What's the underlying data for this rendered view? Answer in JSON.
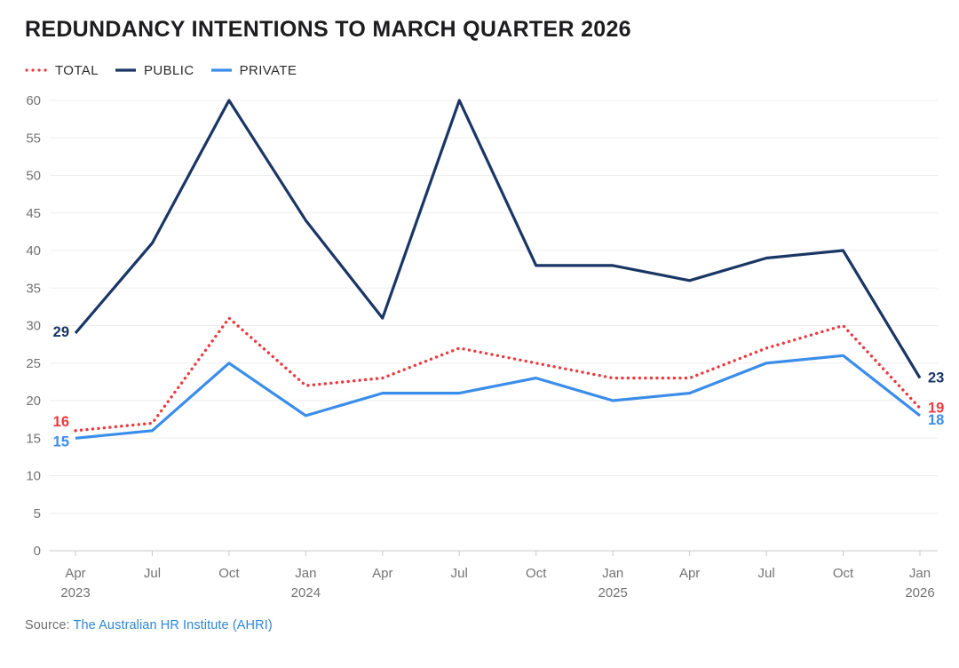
{
  "title": "REDUNDANCY INTENTIONS TO MARCH QUARTER 2026",
  "source": {
    "prefix": "Source:",
    "link_text": "The Australian HR Institute (AHRI)"
  },
  "colors": {
    "total": "#ec3a3f",
    "public": "#1a3665",
    "private": "#3a8dea",
    "axis_text": "#737373",
    "gridline": "#ededed",
    "axis_line": "#c9c9c9",
    "title_text": "#1d1d1f",
    "legend_text": "#2b2b2b",
    "source_text": "#6e6e6e",
    "source_link": "#2e86d6"
  },
  "chart_data": {
    "type": "line",
    "title": "REDUNDANCY INTENTIONS TO MARCH QUARTER 2026",
    "categories": [
      "Apr 2023",
      "Jul 2023",
      "Oct 2023",
      "Jan 2024",
      "Apr 2024",
      "Jul 2024",
      "Oct 2024",
      "Jan 2025",
      "Apr 2025",
      "Jul 2025",
      "Oct 2025",
      "Jan 2026"
    ],
    "x_tick_months": [
      "Apr",
      "Jul",
      "Oct",
      "Jan",
      "Apr",
      "Jul",
      "Oct",
      "Jan",
      "Apr",
      "Jul",
      "Oct",
      "Jan"
    ],
    "x_year_labels": [
      {
        "index": 0,
        "label": "2023"
      },
      {
        "index": 3,
        "label": "2024"
      },
      {
        "index": 7,
        "label": "2025"
      },
      {
        "index": 11,
        "label": "2026"
      }
    ],
    "series": [
      {
        "name": "TOTAL",
        "line_style": "dotted",
        "color": "#ec3a3f",
        "values": [
          16,
          17,
          31,
          22,
          23,
          27,
          25,
          23,
          23,
          27,
          30,
          19
        ],
        "start_label": "16",
        "end_label": "19"
      },
      {
        "name": "PUBLIC",
        "line_style": "solid",
        "color": "#1a3665",
        "values": [
          29,
          41,
          60,
          44,
          31,
          60,
          38,
          38,
          36,
          39,
          40,
          23
        ],
        "start_label": "29",
        "end_label": "23"
      },
      {
        "name": "PRIVATE",
        "line_style": "solid",
        "color": "#3a8dea",
        "values": [
          15,
          16,
          25,
          18,
          21,
          21,
          23,
          20,
          21,
          25,
          26,
          18
        ],
        "start_label": "15",
        "end_label": "18"
      }
    ],
    "ylim": [
      0,
      60
    ],
    "ytick_step": 5,
    "grid": "horizontal",
    "legend_position": "top-left"
  }
}
